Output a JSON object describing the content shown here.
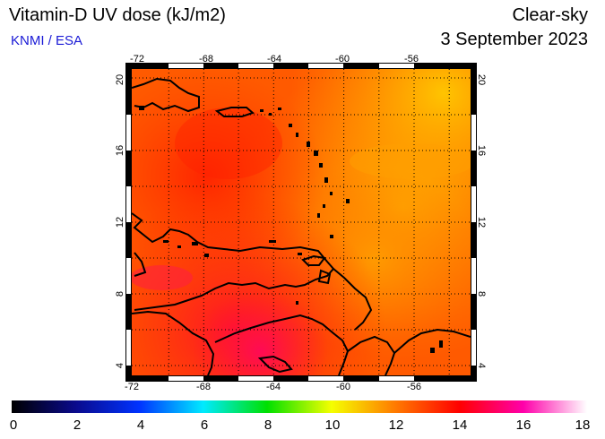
{
  "header": {
    "title": "Vitamin-D UV dose (kJ/m2)",
    "credit": "KNMI / ESA",
    "condition": "Clear-sky",
    "date": "3 September 2023"
  },
  "map": {
    "lon_range": [
      -72,
      -53
    ],
    "lat_range": [
      3.5,
      20.5
    ],
    "lon_ticks": [
      "-72",
      "-68",
      "-64",
      "-60",
      "-56"
    ],
    "lat_ticks": [
      "20",
      "16",
      "12",
      "8",
      "4"
    ],
    "grid": "dotted every 2 degrees",
    "field_colors": {
      "low": "#ff2a00",
      "mid": "#ff6a00",
      "high": "#ffb300",
      "peak": "#ff0f3a"
    },
    "coastline_color": "#000000"
  },
  "colorbar": {
    "labels": [
      "0",
      "2",
      "4",
      "6",
      "8",
      "10",
      "12",
      "14",
      "16",
      "18"
    ],
    "range": [
      0,
      18
    ],
    "stops": [
      {
        "value": 0,
        "color": "#000000"
      },
      {
        "value": 2,
        "color": "#0a0a8c"
      },
      {
        "value": 4,
        "color": "#0033ff"
      },
      {
        "value": 6,
        "color": "#00eaff"
      },
      {
        "value": 8,
        "color": "#00e000"
      },
      {
        "value": 10,
        "color": "#f5ff00"
      },
      {
        "value": 12,
        "color": "#ff7a00"
      },
      {
        "value": 14,
        "color": "#ff0000"
      },
      {
        "value": 16,
        "color": "#ff00aa"
      },
      {
        "value": 18,
        "color": "#ffffff"
      }
    ]
  }
}
